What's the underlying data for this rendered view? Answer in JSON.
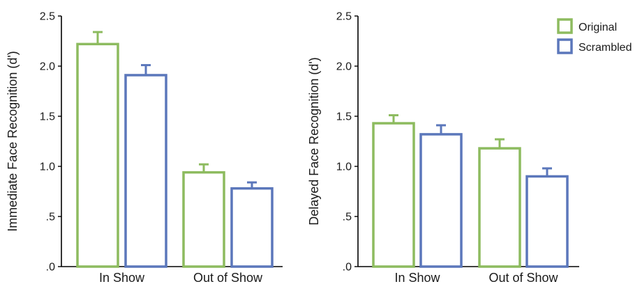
{
  "chart_data": [
    {
      "type": "bar",
      "categories": [
        "In Show",
        "Out of Show"
      ],
      "series": [
        {
          "name": "Original",
          "values": [
            2.22,
            0.94
          ],
          "errors": [
            0.12,
            0.08
          ],
          "color": "#8dbb5f"
        },
        {
          "name": "Scrambled",
          "values": [
            1.91,
            0.78
          ],
          "errors": [
            0.1,
            0.06
          ],
          "color": "#5b77bb"
        }
      ],
      "ylabel": "Immediate Face Recognition (d')",
      "ylim": [
        0,
        2.5
      ],
      "yticks": [
        0,
        0.5,
        1.0,
        1.5,
        2.0,
        2.5
      ],
      "ytick_labels": [
        ".0",
        ".5",
        "1.0",
        "1.5",
        "2.0",
        "2.5"
      ],
      "grid": false,
      "legend": "none"
    },
    {
      "type": "bar",
      "categories": [
        "In Show",
        "Out of Show"
      ],
      "series": [
        {
          "name": "Original",
          "values": [
            1.43,
            1.18
          ],
          "errors": [
            0.08,
            0.09
          ],
          "color": "#8dbb5f"
        },
        {
          "name": "Scrambled",
          "values": [
            1.32,
            0.9
          ],
          "errors": [
            0.09,
            0.08
          ],
          "color": "#5b77bb"
        }
      ],
      "ylabel": "Delayed Face Recognition (d')",
      "ylim": [
        0,
        2.5
      ],
      "yticks": [
        0,
        0.5,
        1.0,
        1.5,
        2.0,
        2.5
      ],
      "ytick_labels": [
        ".0",
        ".5",
        "1.0",
        "1.5",
        "2.0",
        "2.5"
      ],
      "grid": false,
      "legend": "top-right"
    }
  ]
}
